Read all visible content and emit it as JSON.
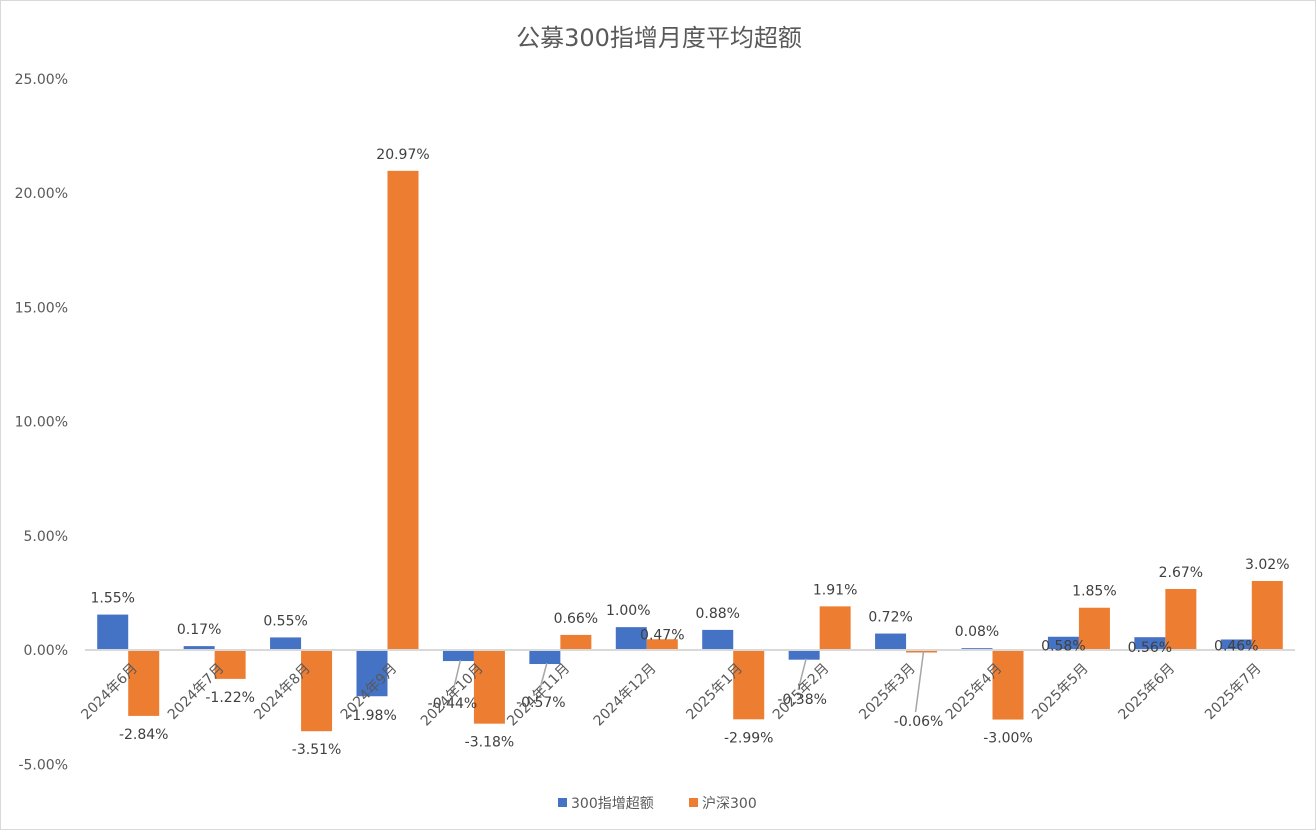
{
  "chart_data": {
    "type": "bar",
    "title": "公募300指增月度平均超额",
    "xlabel": "",
    "ylabel": "",
    "ylim": [
      -0.05,
      0.25
    ],
    "yticks": [
      "25.00%",
      "20.00%",
      "15.00%",
      "10.00%",
      "5.00%",
      "0.00%",
      "-5.00%"
    ],
    "ytick_values": [
      0.25,
      0.2,
      0.15,
      0.1,
      0.05,
      0.0,
      -0.05
    ],
    "grid": false,
    "legend_position": "bottom",
    "categories": [
      "2024年6月",
      "2024年7月",
      "2024年8月",
      "2024年9月",
      "2024年10月",
      "2024年11月",
      "2024年12月",
      "2025年1月",
      "2025年2月",
      "2025年3月",
      "2025年4月",
      "2025年5月",
      "2025年6月",
      "2025年7月"
    ],
    "series": [
      {
        "name": "300指增超额",
        "color": "#4472C4",
        "values": [
          0.0155,
          0.0017,
          0.0055,
          -0.0198,
          -0.0044,
          -0.0057,
          0.01,
          0.0088,
          -0.0038,
          0.0072,
          0.0008,
          0.0058,
          0.0056,
          0.0046
        ],
        "labels": [
          "1.55%",
          "0.17%",
          "0.55%",
          "-1.98%",
          "-0.44%",
          "-0.57%",
          "1.00%",
          "0.88%",
          "-0.38%",
          "0.72%",
          "0.08%",
          "0.58%",
          "0.56%",
          "0.46%"
        ]
      },
      {
        "name": "沪深300",
        "color": "#ED7D31",
        "values": [
          -0.0284,
          -0.0122,
          -0.0351,
          0.2097,
          -0.0318,
          0.0066,
          0.0047,
          -0.0299,
          0.0191,
          -0.0006,
          -0.03,
          0.0185,
          0.0267,
          0.0302
        ],
        "labels": [
          "-2.84%",
          "-1.22%",
          "-3.51%",
          "20.97%",
          "-3.18%",
          "0.66%",
          "0.47%",
          "-2.99%",
          "1.91%",
          "-0.06%",
          "-3.00%",
          "1.85%",
          "2.67%",
          "3.02%"
        ]
      }
    ]
  },
  "legend": {
    "items": [
      {
        "label": "300指增超额",
        "color": "#4472C4"
      },
      {
        "label": "沪深300",
        "color": "#ED7D31"
      }
    ]
  }
}
